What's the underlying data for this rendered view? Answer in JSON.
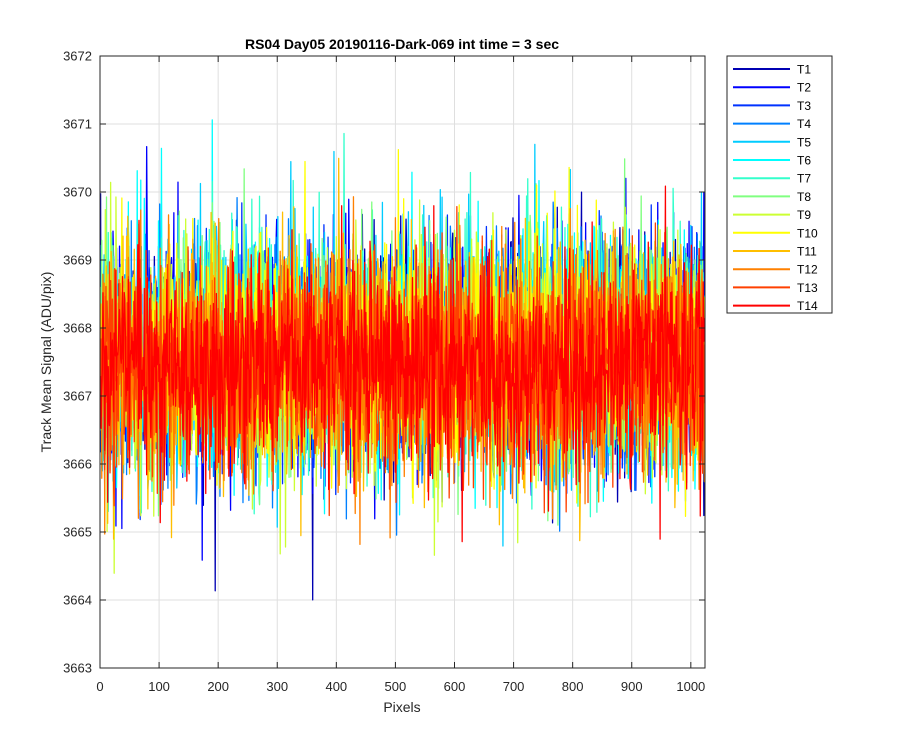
{
  "chart_data": {
    "type": "line",
    "title": "RS04 Day05 20190116-Dark-069 int time = 3 sec",
    "xlabel": "Pixels",
    "ylabel": "Track Mean Signal (ADU/pix)",
    "xlim": [
      0,
      1024
    ],
    "ylim": [
      3663,
      3672
    ],
    "xticks": [
      0,
      100,
      200,
      300,
      400,
      500,
      600,
      700,
      800,
      900,
      1000
    ],
    "yticks": [
      3663,
      3664,
      3665,
      3666,
      3667,
      3668,
      3669,
      3670,
      3671,
      3672
    ],
    "grid": true,
    "legend_position": "outside-top-right",
    "x_range": [
      1,
      1024
    ],
    "series": [
      {
        "name": "T1",
        "color": "#0000B2",
        "mean": 3667.6,
        "spread": 1.1
      },
      {
        "name": "T2",
        "color": "#0000FF",
        "mean": 3667.7,
        "spread": 1.1
      },
      {
        "name": "T3",
        "color": "#0033FF",
        "mean": 3667.6,
        "spread": 1.1
      },
      {
        "name": "T4",
        "color": "#0080FF",
        "mean": 3667.6,
        "spread": 1.1
      },
      {
        "name": "T5",
        "color": "#00CCFF",
        "mean": 3667.7,
        "spread": 1.1
      },
      {
        "name": "T6",
        "color": "#00FFFF",
        "mean": 3667.6,
        "spread": 1.1
      },
      {
        "name": "T7",
        "color": "#33FFCC",
        "mean": 3667.6,
        "spread": 1.1
      },
      {
        "name": "T8",
        "color": "#80FF80",
        "mean": 3667.6,
        "spread": 1.1
      },
      {
        "name": "T9",
        "color": "#CCFF33",
        "mean": 3667.6,
        "spread": 1.1
      },
      {
        "name": "T10",
        "color": "#FFFF00",
        "mean": 3667.6,
        "spread": 1.1
      },
      {
        "name": "T11",
        "color": "#FFBF00",
        "mean": 3667.5,
        "spread": 1.1
      },
      {
        "name": "T12",
        "color": "#FF8000",
        "mean": 3667.5,
        "spread": 1.1
      },
      {
        "name": "T13",
        "color": "#FF4000",
        "mean": 3667.4,
        "spread": 1.0
      },
      {
        "name": "T14",
        "color": "#FF0000",
        "mean": 3667.4,
        "spread": 1.0
      }
    ]
  }
}
